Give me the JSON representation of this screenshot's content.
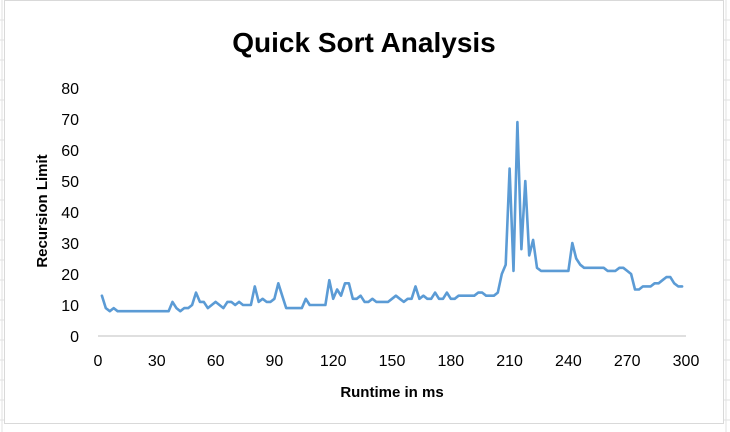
{
  "chart_data": {
    "type": "line",
    "title": "Quick Sort Analysis",
    "xlabel": "Runtime in ms",
    "ylabel": "Recursion Limit",
    "xlim": [
      0,
      300
    ],
    "ylim": [
      0,
      80
    ],
    "xticks": [
      0,
      30,
      60,
      90,
      120,
      150,
      180,
      210,
      240,
      270,
      300
    ],
    "yticks": [
      0,
      10,
      20,
      30,
      40,
      50,
      60,
      70,
      80
    ],
    "grid": false,
    "legend": "none",
    "series": [
      {
        "color": "#5b9bd5",
        "points": [
          [
            2,
            13
          ],
          [
            4,
            9
          ],
          [
            6,
            8
          ],
          [
            8,
            9
          ],
          [
            10,
            8
          ],
          [
            14,
            8
          ],
          [
            20,
            8
          ],
          [
            26,
            8
          ],
          [
            32,
            8
          ],
          [
            36,
            8
          ],
          [
            38,
            11
          ],
          [
            40,
            9
          ],
          [
            42,
            8
          ],
          [
            44,
            9
          ],
          [
            46,
            9
          ],
          [
            48,
            10
          ],
          [
            50,
            14
          ],
          [
            52,
            11
          ],
          [
            54,
            11
          ],
          [
            56,
            9
          ],
          [
            58,
            10
          ],
          [
            60,
            11
          ],
          [
            62,
            10
          ],
          [
            64,
            9
          ],
          [
            66,
            11
          ],
          [
            68,
            11
          ],
          [
            70,
            10
          ],
          [
            72,
            11
          ],
          [
            74,
            10
          ],
          [
            76,
            10
          ],
          [
            78,
            10
          ],
          [
            80,
            16
          ],
          [
            82,
            11
          ],
          [
            84,
            12
          ],
          [
            86,
            11
          ],
          [
            88,
            11
          ],
          [
            90,
            12
          ],
          [
            92,
            17
          ],
          [
            94,
            13
          ],
          [
            96,
            9
          ],
          [
            98,
            9
          ],
          [
            100,
            9
          ],
          [
            102,
            9
          ],
          [
            104,
            9
          ],
          [
            106,
            12
          ],
          [
            108,
            10
          ],
          [
            110,
            10
          ],
          [
            112,
            10
          ],
          [
            114,
            10
          ],
          [
            116,
            10
          ],
          [
            118,
            18
          ],
          [
            120,
            12
          ],
          [
            122,
            15
          ],
          [
            124,
            13
          ],
          [
            126,
            17
          ],
          [
            128,
            17
          ],
          [
            130,
            12
          ],
          [
            132,
            12
          ],
          [
            134,
            13
          ],
          [
            136,
            11
          ],
          [
            138,
            11
          ],
          [
            140,
            12
          ],
          [
            142,
            11
          ],
          [
            144,
            11
          ],
          [
            146,
            11
          ],
          [
            148,
            11
          ],
          [
            150,
            12
          ],
          [
            152,
            13
          ],
          [
            154,
            12
          ],
          [
            156,
            11
          ],
          [
            158,
            12
          ],
          [
            160,
            12
          ],
          [
            162,
            16
          ],
          [
            164,
            12
          ],
          [
            166,
            13
          ],
          [
            168,
            12
          ],
          [
            170,
            12
          ],
          [
            172,
            14
          ],
          [
            174,
            12
          ],
          [
            176,
            12
          ],
          [
            178,
            14
          ],
          [
            180,
            12
          ],
          [
            182,
            12
          ],
          [
            184,
            13
          ],
          [
            186,
            13
          ],
          [
            188,
            13
          ],
          [
            190,
            13
          ],
          [
            192,
            13
          ],
          [
            194,
            14
          ],
          [
            196,
            14
          ],
          [
            198,
            13
          ],
          [
            200,
            13
          ],
          [
            202,
            13
          ],
          [
            204,
            14
          ],
          [
            206,
            20
          ],
          [
            208,
            23
          ],
          [
            210,
            54
          ],
          [
            212,
            21
          ],
          [
            214,
            69
          ],
          [
            216,
            28
          ],
          [
            218,
            50
          ],
          [
            220,
            26
          ],
          [
            222,
            31
          ],
          [
            224,
            22
          ],
          [
            226,
            21
          ],
          [
            228,
            21
          ],
          [
            230,
            21
          ],
          [
            232,
            21
          ],
          [
            234,
            21
          ],
          [
            236,
            21
          ],
          [
            238,
            21
          ],
          [
            240,
            21
          ],
          [
            242,
            30
          ],
          [
            244,
            25
          ],
          [
            246,
            23
          ],
          [
            248,
            22
          ],
          [
            250,
            22
          ],
          [
            252,
            22
          ],
          [
            254,
            22
          ],
          [
            256,
            22
          ],
          [
            258,
            22
          ],
          [
            260,
            21
          ],
          [
            262,
            21
          ],
          [
            264,
            21
          ],
          [
            266,
            22
          ],
          [
            268,
            22
          ],
          [
            270,
            21
          ],
          [
            272,
            20
          ],
          [
            274,
            15
          ],
          [
            276,
            15
          ],
          [
            278,
            16
          ],
          [
            280,
            16
          ],
          [
            282,
            16
          ],
          [
            284,
            17
          ],
          [
            286,
            17
          ],
          [
            288,
            18
          ],
          [
            290,
            19
          ],
          [
            292,
            19
          ],
          [
            294,
            17
          ],
          [
            296,
            16
          ],
          [
            298,
            16
          ]
        ]
      }
    ]
  }
}
